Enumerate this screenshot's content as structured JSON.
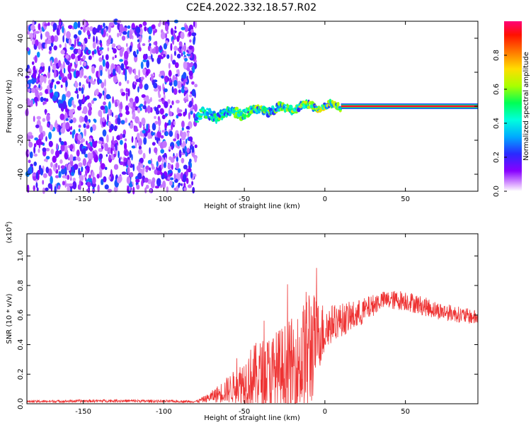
{
  "title": "C2E4.2022.332.18.57.R02",
  "chart_data": [
    {
      "type": "heatmap",
      "xlabel": "Height of straight line (km)",
      "ylabel": "Frequency (Hz)",
      "xlim": [
        -185,
        95
      ],
      "ylim": [
        -50,
        50
      ],
      "xticks": [
        -150,
        -100,
        -50,
        0,
        50
      ],
      "yticks": [
        -40,
        -20,
        0,
        20,
        40
      ],
      "colorbar": {
        "label": "Normalized spectral amplitude",
        "range": [
          0,
          1
        ],
        "ticks": [
          "0.0",
          "0.2",
          "0.4",
          "0.6",
          "0.8"
        ],
        "tick_values": [
          0,
          0.2,
          0.4,
          0.6,
          0.8
        ],
        "colormap": "rainbow-magenta-to-red"
      },
      "regions": [
        {
          "x": [
            -185,
            -80
          ],
          "description": "noise",
          "amplitude_range": [
            0.05,
            0.3
          ]
        },
        {
          "x": [
            -80,
            10
          ],
          "description": "signal trace near 0 Hz, rising from -6 Hz",
          "amplitude_range": [
            0.2,
            0.8
          ]
        },
        {
          "x": [
            10,
            95
          ],
          "description": "steady signal at 0 Hz",
          "amplitude_range": [
            0.4,
            0.95
          ]
        }
      ]
    },
    {
      "type": "line",
      "xlabel": "Height of straight line (km)",
      "ylabel": "SNR (10 * v/v)",
      "y_multiplier_label": "(x10",
      "y_multiplier_exp": "4",
      "y_multiplier_close": ")",
      "xlim": [
        -185,
        95
      ],
      "ylim": [
        0,
        1.15
      ],
      "xticks": [
        -150,
        -100,
        -50,
        0,
        50
      ],
      "yticks": [
        "0.0",
        "0.2",
        "0.4",
        "0.6",
        "0.8",
        "1.0"
      ],
      "ytick_values": [
        0,
        0.2,
        0.4,
        0.6,
        0.8,
        1.0
      ],
      "series": [
        {
          "color": "#ee3333",
          "envelope": [
            {
              "x": -185,
              "base": 0.015,
              "noise": 0.008
            },
            {
              "x": -130,
              "base": 0.02,
              "noise": 0.01
            },
            {
              "x": -80,
              "base": 0.015,
              "noise": 0.008
            },
            {
              "x": -72,
              "base": 0.04,
              "noise": 0.03
            },
            {
              "x": -55,
              "base": 0.12,
              "noise": 0.12
            },
            {
              "x": -45,
              "base": 0.18,
              "noise": 0.22
            },
            {
              "x": -30,
              "base": 0.2,
              "noise": 0.3
            },
            {
              "x": -15,
              "base": 0.28,
              "noise": 0.35
            },
            {
              "x": -10,
              "base": 0.35,
              "noise": 0.5
            },
            {
              "x": -5,
              "base": 0.45,
              "noise": 0.25
            },
            {
              "x": 5,
              "base": 0.55,
              "noise": 0.12
            },
            {
              "x": 20,
              "base": 0.6,
              "noise": 0.1
            },
            {
              "x": 35,
              "base": 0.7,
              "noise": 0.06
            },
            {
              "x": 50,
              "base": 0.7,
              "noise": 0.07
            },
            {
              "x": 70,
              "base": 0.63,
              "noise": 0.06
            },
            {
              "x": 95,
              "base": 0.58,
              "noise": 0.05
            }
          ]
        }
      ]
    }
  ]
}
